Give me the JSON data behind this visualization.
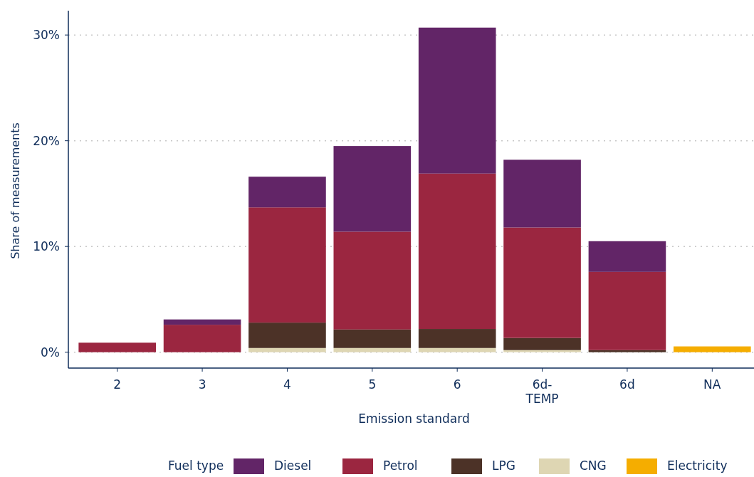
{
  "chart_data": {
    "type": "bar",
    "stacked": true,
    "xlabel": "Emission standard",
    "ylabel": "Share of measurements",
    "legend_title": "Fuel type",
    "legend": "bottom",
    "grid": "y",
    "categories": [
      "2",
      "3",
      "4",
      "5",
      "6",
      "6d-TEMP",
      "6d",
      "NA"
    ],
    "series": [
      {
        "name": "Electricity",
        "color": "#f5ad00",
        "values": [
          null,
          null,
          null,
          null,
          null,
          null,
          null,
          0.55
        ]
      },
      {
        "name": "CNG",
        "color": "#ded6b3",
        "values": [
          null,
          null,
          0.4,
          0.4,
          0.4,
          0.2,
          null,
          null
        ]
      },
      {
        "name": "LPG",
        "color": "#4c3227",
        "values": [
          null,
          null,
          2.4,
          1.75,
          1.8,
          1.15,
          0.2,
          null
        ]
      },
      {
        "name": "Petrol",
        "color": "#9b2640",
        "values": [
          0.9,
          2.6,
          10.9,
          9.25,
          14.7,
          10.45,
          7.4,
          null
        ]
      },
      {
        "name": "Diesel",
        "color": "#622567",
        "values": [
          null,
          0.5,
          2.9,
          8.1,
          13.8,
          6.4,
          2.9,
          null
        ]
      }
    ],
    "ylim": [
      -1.5,
      32.3
    ],
    "yticks": [
      {
        "value": 0,
        "label": "0%"
      },
      {
        "value": 10,
        "label": "10%"
      },
      {
        "value": 20,
        "label": "20%"
      },
      {
        "value": 30,
        "label": "30%"
      }
    ]
  }
}
